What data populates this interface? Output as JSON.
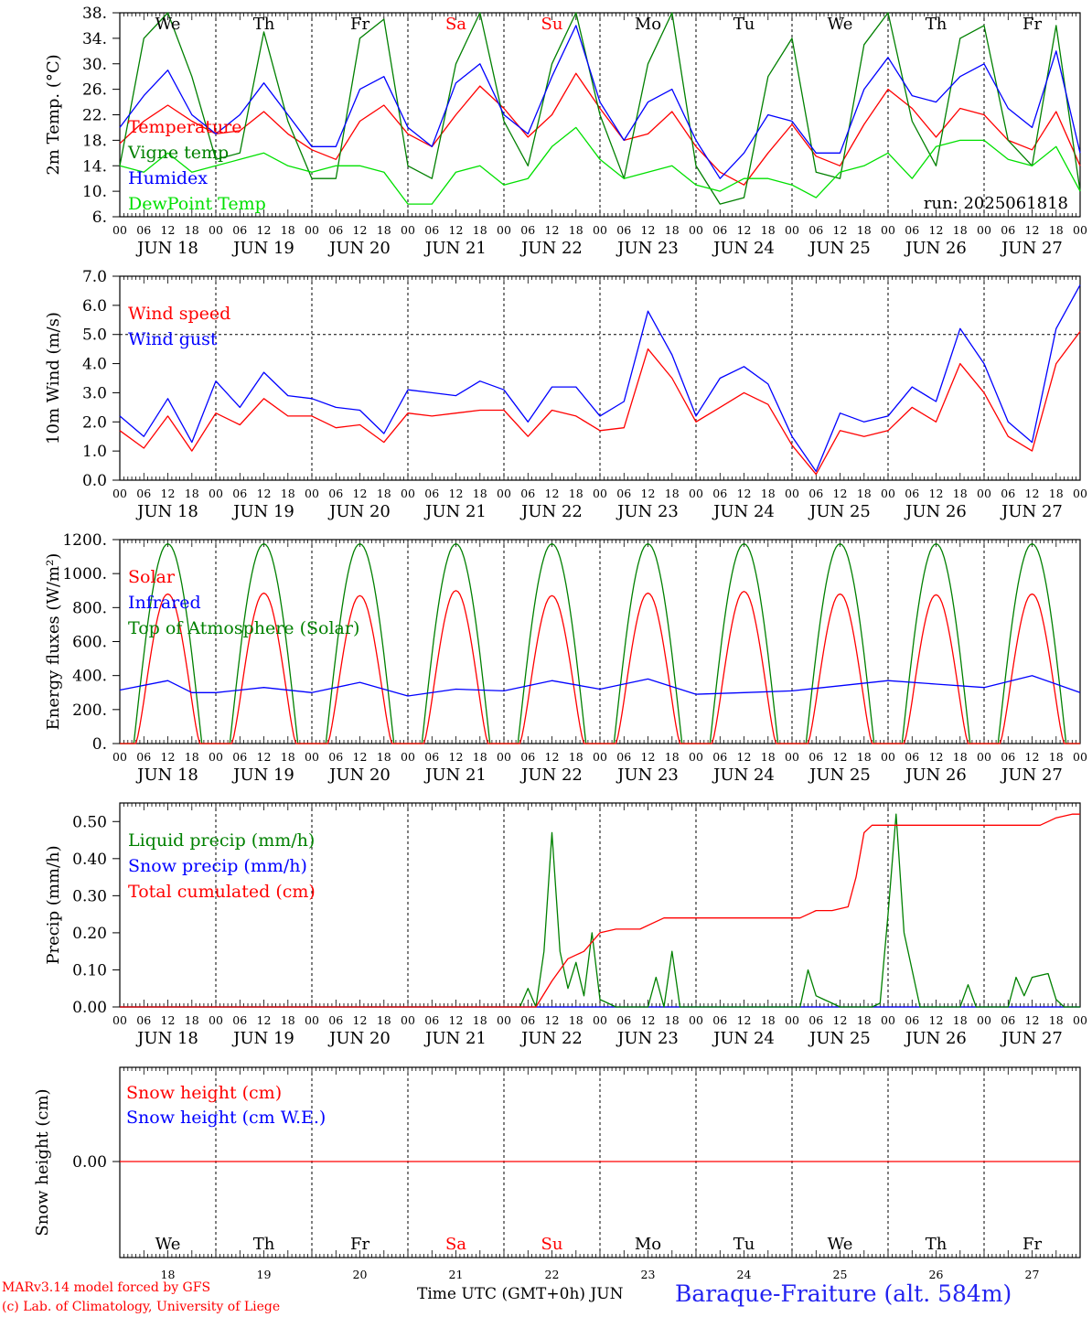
{
  "colors": {
    "red": "#ff0000",
    "blue": "#0000ff",
    "green": "#008000",
    "lightgreen": "#00e000",
    "redday": "#ff0000"
  },
  "days": {
    "names": [
      "We",
      "Th",
      "Fr",
      "Sa",
      "Su",
      "Mo",
      "Tu",
      "We",
      "Th",
      "Fr"
    ],
    "weekend": [
      false,
      false,
      false,
      true,
      true,
      false,
      false,
      false,
      false,
      false
    ],
    "dates": [
      "JUN 18",
      "JUN 19",
      "JUN 20",
      "JUN 21",
      "JUN 22",
      "JUN 23",
      "JUN 24",
      "JUN 25",
      "JUN 26",
      "JUN 27"
    ],
    "numbers": [
      "18",
      "19",
      "20",
      "21",
      "22",
      "23",
      "24",
      "25",
      "26",
      "27"
    ],
    "hour_ticks": [
      "00",
      "06",
      "12",
      "18"
    ],
    "end_tick": "00"
  },
  "run_label": "run: 2025061818",
  "footer": {
    "model": "MARv3.14 model forced by GFS",
    "credit": "(c) Lab. of Climatology, University of Liege",
    "axis": "Time UTC (GMT+0h) JUN",
    "station": "Baraque-Fraiture (alt. 584m)"
  },
  "chart_data": [
    {
      "type": "line",
      "ylabel": "2m Temp. (°C)",
      "ylim": [
        6,
        38
      ],
      "yticks": [
        "6.",
        "10.",
        "14.",
        "18.",
        "22.",
        "26.",
        "30.",
        "34.",
        "38."
      ],
      "x_unit": "hours since JUN 18 00 UTC",
      "legend": [
        "Temperature",
        "Vigne temp",
        "Humidex",
        "DewPoint Temp"
      ],
      "series": [
        {
          "name": "Temperature",
          "color": "red",
          "x": [
            0,
            6,
            12,
            18,
            24,
            30,
            36,
            42,
            48,
            54,
            60,
            66,
            72,
            78,
            84,
            90,
            96,
            102,
            108,
            114,
            120,
            126,
            132,
            138,
            144,
            150,
            156,
            162,
            168,
            174,
            180,
            186,
            192,
            198,
            204,
            210,
            216,
            222,
            228,
            234,
            240
          ],
          "values": [
            17.5,
            21,
            23.5,
            21,
            19,
            19.5,
            22.5,
            19,
            16.5,
            15,
            21,
            23.5,
            19,
            17,
            22,
            26.5,
            23,
            18.5,
            22,
            28.5,
            23,
            18,
            19,
            22.5,
            17,
            13,
            11,
            16,
            20.5,
            15.5,
            14,
            20.5,
            26,
            23,
            18.5,
            23,
            22,
            18,
            16.5,
            22.5,
            14
          ]
        },
        {
          "name": "Vigne temp",
          "color": "green",
          "x": [
            0,
            6,
            12,
            18,
            24,
            30,
            36,
            42,
            48,
            54,
            60,
            66,
            72,
            78,
            84,
            90,
            96,
            102,
            108,
            114,
            120,
            126,
            132,
            138,
            144,
            150,
            156,
            162,
            168,
            174,
            180,
            186,
            192,
            198,
            204,
            210,
            216,
            222,
            228,
            234,
            240
          ],
          "values": [
            14,
            34,
            38,
            28,
            15,
            16,
            35,
            21,
            12,
            12,
            34,
            37,
            14,
            12,
            30,
            38,
            21,
            14,
            30,
            38,
            22,
            12,
            30,
            38,
            14,
            8,
            9,
            28,
            34,
            13,
            12,
            33,
            38,
            21,
            14,
            34,
            36,
            18,
            14,
            36,
            10
          ]
        },
        {
          "name": "Humidex",
          "color": "blue",
          "x": [
            0,
            6,
            12,
            18,
            24,
            30,
            36,
            42,
            48,
            54,
            60,
            66,
            72,
            78,
            84,
            90,
            96,
            102,
            108,
            114,
            120,
            126,
            132,
            138,
            144,
            150,
            156,
            162,
            168,
            174,
            180,
            186,
            192,
            198,
            204,
            210,
            216,
            222,
            228,
            234,
            240
          ],
          "values": [
            20,
            25,
            29,
            22,
            19,
            22,
            27,
            22,
            17,
            17,
            26,
            28,
            20,
            17,
            27,
            30,
            22,
            19,
            28,
            36,
            24,
            18,
            24,
            26,
            18,
            12,
            16,
            22,
            21,
            16,
            16,
            26,
            31,
            25,
            24,
            28,
            30,
            23,
            20,
            32,
            16
          ]
        },
        {
          "name": "DewPoint Temp",
          "color": "lightgreen",
          "x": [
            0,
            6,
            12,
            18,
            24,
            30,
            36,
            42,
            48,
            54,
            60,
            66,
            72,
            78,
            84,
            90,
            96,
            102,
            108,
            114,
            120,
            126,
            132,
            138,
            144,
            150,
            156,
            162,
            168,
            174,
            180,
            186,
            192,
            198,
            204,
            210,
            216,
            222,
            228,
            234,
            240
          ],
          "values": [
            14,
            13,
            16,
            13,
            14,
            15,
            16,
            14,
            13,
            14,
            14,
            13,
            8,
            8,
            13,
            14,
            11,
            12,
            17,
            20,
            15,
            12,
            13,
            14,
            11,
            10,
            12,
            12,
            11,
            9,
            13,
            14,
            16,
            12,
            17,
            18,
            18,
            15,
            14,
            17,
            10
          ]
        }
      ]
    },
    {
      "type": "line",
      "ylabel": "10m Wind (m/s)",
      "ylim": [
        0,
        7
      ],
      "yticks": [
        "0.0",
        "1.0",
        "2.0",
        "3.0",
        "4.0",
        "5.0",
        "6.0",
        "7.0"
      ],
      "reference_line": 5.0,
      "x_unit": "hours since JUN 18 00 UTC",
      "legend": [
        "Wind speed",
        "Wind gust"
      ],
      "series": [
        {
          "name": "Wind speed",
          "color": "red",
          "x": [
            0,
            6,
            12,
            18,
            24,
            30,
            36,
            42,
            48,
            54,
            60,
            66,
            72,
            78,
            84,
            90,
            96,
            102,
            108,
            114,
            120,
            126,
            132,
            138,
            144,
            150,
            156,
            162,
            168,
            174,
            180,
            186,
            192,
            198,
            204,
            210,
            216,
            222,
            228,
            234,
            240
          ],
          "values": [
            1.7,
            1.1,
            2.2,
            1.0,
            2.3,
            1.9,
            2.8,
            2.2,
            2.2,
            1.8,
            1.9,
            1.3,
            2.3,
            2.2,
            2.3,
            2.4,
            2.4,
            1.5,
            2.4,
            2.2,
            1.7,
            1.8,
            4.5,
            3.5,
            2.0,
            2.5,
            3.0,
            2.6,
            1.2,
            0.2,
            1.7,
            1.5,
            1.7,
            2.5,
            2.0,
            4.0,
            3.0,
            1.5,
            1.0,
            4.0,
            5.1
          ]
        },
        {
          "name": "Wind gust",
          "color": "blue",
          "x": [
            0,
            6,
            12,
            18,
            24,
            30,
            36,
            42,
            48,
            54,
            60,
            66,
            72,
            78,
            84,
            90,
            96,
            102,
            108,
            114,
            120,
            126,
            132,
            138,
            144,
            150,
            156,
            162,
            168,
            174,
            180,
            186,
            192,
            198,
            204,
            210,
            216,
            222,
            228,
            234,
            240
          ],
          "values": [
            2.2,
            1.5,
            2.8,
            1.3,
            3.4,
            2.5,
            3.7,
            2.9,
            2.8,
            2.5,
            2.4,
            1.6,
            3.1,
            3.0,
            2.9,
            3.4,
            3.1,
            2.0,
            3.2,
            3.2,
            2.2,
            2.7,
            5.8,
            4.3,
            2.2,
            3.5,
            3.9,
            3.3,
            1.5,
            0.3,
            2.3,
            2.0,
            2.2,
            3.2,
            2.7,
            5.2,
            4.0,
            2.0,
            1.3,
            5.2,
            6.7
          ]
        }
      ]
    },
    {
      "type": "line",
      "ylabel": "Energy fluxes (W/m²)",
      "ylim": [
        0,
        1200
      ],
      "yticks": [
        "0.",
        "200.",
        "400.",
        "600.",
        "800.",
        "1000.",
        "1200."
      ],
      "x_unit": "hours since JUN 18 00 UTC",
      "legend": [
        "Solar",
        "Infrared",
        "Top of Atmosphere (Solar)"
      ],
      "solar_peaks": [
        880,
        885,
        870,
        900,
        870,
        885,
        895,
        880,
        875,
        880
      ],
      "toa_peak": 1175,
      "infrared": {
        "x": [
          0,
          12,
          18,
          24,
          36,
          48,
          60,
          72,
          84,
          96,
          108,
          120,
          132,
          144,
          156,
          168,
          180,
          192,
          204,
          216,
          228,
          240
        ],
        "values": [
          315,
          370,
          300,
          300,
          330,
          300,
          360,
          280,
          320,
          310,
          370,
          320,
          380,
          290,
          300,
          310,
          340,
          370,
          350,
          330,
          400,
          300
        ]
      },
      "series": [
        {
          "name": "Solar",
          "color": "red"
        },
        {
          "name": "Infrared",
          "color": "blue"
        },
        {
          "name": "Top of Atmosphere (Solar)",
          "color": "green"
        }
      ]
    },
    {
      "type": "line",
      "ylabel": "Precip (mm/h)",
      "ylim": [
        0,
        0.55
      ],
      "yticks": [
        "0.00",
        "0.10",
        "0.20",
        "0.30",
        "0.40",
        "0.50"
      ],
      "x_unit": "hours since JUN 18 00 UTC",
      "legend": [
        "Liquid precip (mm/h)",
        "Snow precip (mm/h)",
        "Total cumulated (cm)"
      ],
      "series": [
        {
          "name": "Liquid precip (mm/h)",
          "color": "green",
          "x": [
            0,
            100,
            102,
            104,
            106,
            108,
            110,
            112,
            114,
            116,
            118,
            120,
            122,
            124,
            126,
            128,
            130,
            132,
            134,
            136,
            138,
            140,
            142,
            170,
            172,
            174,
            176,
            178,
            180,
            182,
            184,
            186,
            188,
            190,
            192,
            194,
            196,
            200,
            210,
            212,
            214,
            216,
            222,
            224,
            226,
            228,
            232,
            234,
            236,
            240
          ],
          "values": [
            0,
            0,
            0.05,
            0,
            0.15,
            0.47,
            0.15,
            0.05,
            0.12,
            0.03,
            0.2,
            0.02,
            0.01,
            0,
            0,
            0,
            0,
            0,
            0.08,
            0,
            0.15,
            0,
            0,
            0,
            0.1,
            0.03,
            0.02,
            0.01,
            0,
            0,
            0,
            0,
            0,
            0.01,
            0.25,
            0.52,
            0.2,
            0,
            0,
            0.06,
            0,
            0,
            0,
            0.08,
            0.03,
            0.08,
            0.09,
            0.02,
            0,
            0
          ]
        },
        {
          "name": "Snow precip (mm/h)",
          "color": "blue",
          "x": [
            0,
            240
          ],
          "values": [
            0,
            0
          ]
        },
        {
          "name": "Total cumulated (cm)",
          "color": "red",
          "x": [
            0,
            104,
            108,
            112,
            114,
            116,
            120,
            124,
            130,
            134,
            136,
            170,
            174,
            178,
            182,
            184,
            186,
            188,
            230,
            234,
            238,
            240
          ],
          "values": [
            0,
            0,
            0.07,
            0.13,
            0.14,
            0.15,
            0.2,
            0.21,
            0.21,
            0.23,
            0.24,
            0.24,
            0.26,
            0.26,
            0.27,
            0.35,
            0.47,
            0.49,
            0.49,
            0.51,
            0.52,
            0.52
          ]
        }
      ]
    },
    {
      "type": "line",
      "ylabel": "Snow height (cm)",
      "yticks": [
        "0.00"
      ],
      "x_unit": "hours since JUN 18 00 UTC",
      "legend": [
        "Snow height (cm)",
        "Snow height (cm W.E.)"
      ],
      "series": [
        {
          "name": "Snow height (cm)",
          "color": "red",
          "x": [
            0,
            240
          ],
          "values": [
            0,
            0
          ]
        },
        {
          "name": "Snow height (cm W.E.)",
          "color": "blue",
          "x": [
            0,
            240
          ],
          "values": [
            0,
            0
          ]
        }
      ]
    }
  ]
}
